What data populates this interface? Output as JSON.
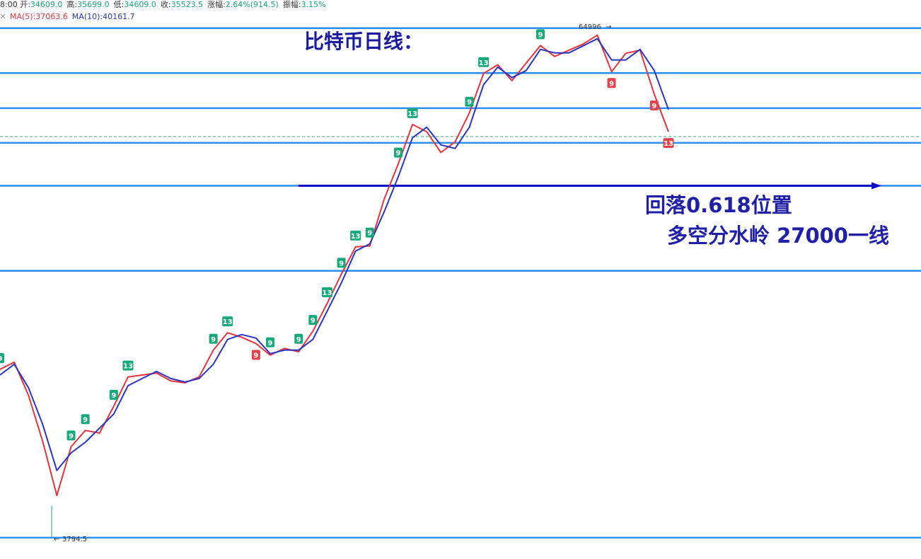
{
  "chart_data": {
    "type": "line",
    "title": "比特币日线：",
    "info": {
      "time": "8:00",
      "items": [
        {
          "label": "开:",
          "value": "34609.0"
        },
        {
          "label": "高:",
          "value": "35699.0"
        },
        {
          "label": "低:",
          "value": "34609.0"
        },
        {
          "label": "收:",
          "value": "35523.5"
        },
        {
          "label": "涨幅:",
          "value": "2.64%(914.5)"
        },
        {
          "label": "振幅:",
          "value": "3.15%"
        }
      ]
    },
    "annotations": [
      "回落0.618位置",
      "多空分水岭 27000一线"
    ],
    "high": 64996,
    "low": 3794.5,
    "log_scale": true,
    "ylim": [
      3370,
      67560
    ],
    "levels": [
      64996,
      50600,
      41600,
      34300,
      27000,
      16800,
      3794.5
    ],
    "level_color": "#2b8ef0",
    "current_price": 35523.5,
    "current_color": "#3aa88a",
    "arrow_level": 27000,
    "arrow_color": "#0a0ac8",
    "categories": [
      null,
      null,
      null,
      null,
      null,
      null,
      null,
      null,
      null,
      null,
      null,
      null,
      null,
      null,
      null,
      null,
      null,
      null,
      null,
      null,
      null,
      null,
      null,
      null,
      null,
      null,
      null,
      null,
      null,
      null,
      null,
      null,
      null,
      null,
      null,
      null,
      null,
      null,
      null,
      null,
      null,
      null,
      null,
      null,
      null,
      null,
      null,
      null
    ],
    "series": [
      {
        "name": "MA(5):37063.6",
        "color": "#e8323c",
        "values": [
          9700,
          10100,
          8400,
          6500,
          4800,
          6300,
          6900,
          6800,
          7900,
          9300,
          9400,
          9500,
          9100,
          9000,
          9300,
          10800,
          11900,
          11600,
          11200,
          10500,
          10900,
          10700,
          12000,
          14000,
          16500,
          19200,
          19300,
          25000,
          30500,
          38000,
          36500,
          32500,
          34500,
          40500,
          50500,
          53000,
          48500,
          53500,
          59000,
          55500,
          57500,
          59500,
          62500,
          51000,
          56500,
          57500,
          45000,
          36500
        ]
      },
      {
        "name": "MA(10):40161.7",
        "color": "#2a35c0",
        "values": [
          9400,
          9980,
          8760,
          7140,
          5520,
          6090,
          6460,
          6990,
          7570,
          8860,
          9220,
          9590,
          9220,
          9040,
          9220,
          9980,
          11460,
          11780,
          11550,
          10590,
          10800,
          10800,
          11460,
          13410,
          15710,
          18760,
          19520,
          23310,
          28390,
          35270,
          37420,
          33900,
          33240,
          37420,
          47420,
          52340,
          49330,
          51310,
          57750,
          56630,
          56630,
          58910,
          61280,
          54440,
          54440,
          57750,
          51310,
          41300
        ]
      }
    ],
    "markers": [
      {
        "label": "9",
        "index": 0,
        "color": "#16a97a"
      },
      {
        "label": "9",
        "index": 5,
        "color": "#16a97a"
      },
      {
        "label": "9",
        "index": 6,
        "color": "#16a97a"
      },
      {
        "label": "9",
        "index": 8,
        "color": "#16a97a"
      },
      {
        "label": "13",
        "index": 9,
        "color": "#16a97a"
      },
      {
        "label": "9",
        "index": 15,
        "color": "#16a97a"
      },
      {
        "label": "13",
        "index": 16,
        "color": "#16a97a"
      },
      {
        "label": "9",
        "index": 18,
        "color": "#e0434c"
      },
      {
        "label": "9",
        "index": 19,
        "color": "#16a97a"
      },
      {
        "label": "9",
        "index": 21,
        "color": "#16a97a"
      },
      {
        "label": "9",
        "index": 22,
        "color": "#16a97a"
      },
      {
        "label": "13",
        "index": 23,
        "color": "#16a97a"
      },
      {
        "label": "9",
        "index": 24,
        "color": "#16a97a"
      },
      {
        "label": "13",
        "index": 25,
        "color": "#16a97a"
      },
      {
        "label": "9",
        "index": 26,
        "color": "#16a97a"
      },
      {
        "label": "9",
        "index": 28,
        "color": "#16a97a"
      },
      {
        "label": "13",
        "index": 29,
        "color": "#16a97a"
      },
      {
        "label": "9",
        "index": 33,
        "color": "#16a97a"
      },
      {
        "label": "13",
        "index": 34,
        "color": "#16a97a"
      },
      {
        "label": "9",
        "index": 38,
        "color": "#16a97a"
      },
      {
        "label": "9",
        "index": 43,
        "color": "#e0434c"
      },
      {
        "label": "9",
        "index": 46,
        "color": "#e0434c"
      },
      {
        "label": "13",
        "index": 47,
        "color": "#e0434c"
      }
    ]
  }
}
